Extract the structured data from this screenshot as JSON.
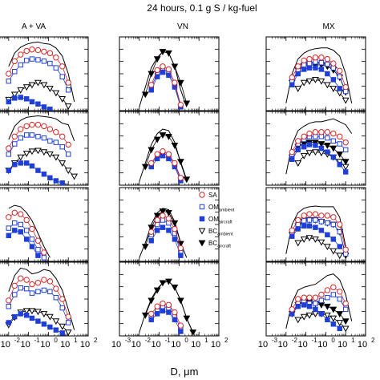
{
  "figure": {
    "title": "24 hours, 0.1 g S / kg-fuel",
    "xlabel": "D, μm"
  },
  "columns": [
    "A + VA",
    "VN",
    "MX"
  ],
  "legend": {
    "entries": [
      {
        "id": "SA",
        "label": "SA",
        "sub": "",
        "marker": "open-circle",
        "color": "#d62728"
      },
      {
        "id": "OMa",
        "label": "OM",
        "sub": "ambient",
        "marker": "open-square",
        "color": "#1f3fd6"
      },
      {
        "id": "OMc",
        "label": "OM",
        "sub": "aircraft",
        "marker": "filled-square",
        "color": "#1f3fd6"
      },
      {
        "id": "BCa",
        "label": "BC",
        "sub": "ambient",
        "marker": "open-triangle-down",
        "color": "#000000"
      },
      {
        "id": "BCc",
        "label": "BC",
        "sub": "aircraft",
        "marker": "filled-triangle-down",
        "color": "#000000"
      }
    ]
  },
  "x_ticks": [
    {
      "base": "10",
      "exp": "-3"
    },
    {
      "base": "10",
      "exp": "-2"
    },
    {
      "base": "10",
      "exp": "-1"
    },
    {
      "base": "10",
      "exp": "0"
    },
    {
      "base": "10",
      "exp": "1"
    },
    {
      "base": "10",
      "exp": "2"
    }
  ],
  "chart_data": {
    "type": "line",
    "xscale": "log",
    "xlim": [
      0.001,
      100
    ],
    "ylim": [
      0,
      1
    ],
    "y_tick_labels": "none",
    "rows": 4,
    "cols": 3,
    "series_styles": {
      "total": {
        "color": "#000000",
        "line": "solid",
        "marker": "none"
      },
      "SA": {
        "color": "#d62728",
        "marker": "open-circle"
      },
      "OMa": {
        "color": "#1f3fd6",
        "marker": "open-square"
      },
      "OMc": {
        "color": "#1f3fd6",
        "marker": "filled-square"
      },
      "BCa": {
        "color": "#000000",
        "marker": "open-triangle-down"
      },
      "BCc": {
        "color": "#000000",
        "marker": "filled-triangle-down"
      }
    },
    "panels": [
      {
        "row": 0,
        "col": 0,
        "x": [
          0.01,
          0.02,
          0.04,
          0.08,
          0.15,
          0.3,
          0.6,
          1.2,
          2.4,
          5,
          10,
          20
        ],
        "total": [
          0.6,
          0.78,
          0.86,
          0.9,
          0.92,
          0.93,
          0.91,
          0.9,
          0.85,
          0.74,
          0.5,
          0.12
        ],
        "SA": [
          0.5,
          0.67,
          0.76,
          0.81,
          0.83,
          0.82,
          0.8,
          0.78,
          0.72,
          0.6,
          0.38,
          null
        ],
        "OMa": [
          0.4,
          0.53,
          0.62,
          0.68,
          0.7,
          0.69,
          0.67,
          0.64,
          0.58,
          0.46,
          0.28,
          null
        ],
        "BCa": [
          0.15,
          0.22,
          0.28,
          0.32,
          0.35,
          0.38,
          0.35,
          0.3,
          0.24,
          0.16,
          0.06,
          null
        ],
        "OMc": [
          0.12,
          0.17,
          0.18,
          0.16,
          0.12,
          0.09,
          0.05,
          0.02,
          null,
          null,
          null,
          null
        ],
        "BCc": []
      },
      {
        "row": 0,
        "col": 1,
        "x": [
          0.01,
          0.02,
          0.04,
          0.08,
          0.15,
          0.3,
          0.6,
          1.2,
          2.4
        ],
        "total": [
          0.05,
          0.32,
          0.58,
          0.72,
          0.8,
          0.78,
          0.6,
          0.28,
          0.05
        ],
        "SA": [
          null,
          null,
          0.35,
          0.55,
          0.6,
          0.56,
          0.38,
          0.08,
          null
        ],
        "OMa": [
          null,
          null,
          0.32,
          0.5,
          0.56,
          0.52,
          0.35,
          0.06,
          null
        ],
        "BCa": [],
        "OMc": [
          null,
          null,
          0.28,
          0.46,
          0.52,
          0.48,
          0.32,
          0.05,
          null
        ],
        "BCc": [
          null,
          0.22,
          0.5,
          0.7,
          0.8,
          0.78,
          0.6,
          0.38,
          0.1
        ]
      },
      {
        "row": 0,
        "col": 2,
        "x": [
          0.01,
          0.02,
          0.04,
          0.08,
          0.15,
          0.3,
          0.6,
          1.2,
          2.4,
          5,
          10,
          20
        ],
        "total": [
          0.1,
          0.5,
          0.7,
          0.78,
          0.82,
          0.84,
          0.85,
          0.85,
          0.82,
          0.74,
          0.5,
          0.1
        ],
        "SA": [
          null,
          0.45,
          0.6,
          0.68,
          0.7,
          0.72,
          0.72,
          0.7,
          0.64,
          0.54,
          0.32,
          null
        ],
        "OMa": [
          null,
          0.4,
          0.55,
          0.62,
          0.64,
          0.66,
          0.65,
          0.63,
          0.58,
          0.46,
          0.26,
          null
        ],
        "BCa": [
          null,
          null,
          0.3,
          0.38,
          0.4,
          0.42,
          0.4,
          0.35,
          0.3,
          0.24,
          0.14,
          null
        ],
        "OMc": [
          null,
          0.35,
          0.5,
          0.56,
          0.58,
          0.58,
          0.56,
          0.5,
          0.42,
          0.3,
          null,
          null
        ],
        "BCc": [
          null,
          0.38,
          0.55,
          0.6,
          0.62,
          0.62,
          0.62,
          0.6,
          0.55,
          0.45,
          0.25,
          null
        ]
      },
      {
        "row": 1,
        "col": 0,
        "x": [
          0.01,
          0.02,
          0.04,
          0.08,
          0.15,
          0.3,
          0.6,
          1.2,
          2.4,
          5,
          10,
          20
        ],
        "total": [
          0.62,
          0.8,
          0.88,
          0.92,
          0.93,
          0.94,
          0.93,
          0.92,
          0.9,
          0.84,
          0.82,
          0.6
        ],
        "SA": [
          0.5,
          0.66,
          0.76,
          0.8,
          0.82,
          0.82,
          0.8,
          0.76,
          0.72,
          0.66,
          0.55,
          null
        ],
        "OMa": [
          0.42,
          0.56,
          0.64,
          0.68,
          0.68,
          0.66,
          0.64,
          0.6,
          0.58,
          0.52,
          0.42,
          null
        ],
        "BCa": [
          0.2,
          0.3,
          0.38,
          0.43,
          0.46,
          0.47,
          0.45,
          0.42,
          0.38,
          0.3,
          0.2,
          0.12
        ],
        "OMc": [
          0.2,
          0.28,
          0.3,
          0.3,
          0.26,
          0.2,
          0.15,
          0.1,
          0.06,
          0.03,
          null,
          null
        ],
        "BCc": []
      },
      {
        "row": 1,
        "col": 1,
        "x": [
          0.01,
          0.02,
          0.04,
          0.08,
          0.15,
          0.3,
          0.6,
          1.2,
          2.4
        ],
        "total": [
          0.05,
          0.3,
          0.55,
          0.7,
          0.76,
          0.74,
          0.58,
          0.3,
          0.06
        ],
        "SA": [
          null,
          null,
          0.3,
          0.42,
          0.46,
          0.42,
          0.3,
          0.1,
          null
        ],
        "OMa": [
          null,
          null,
          0.28,
          0.4,
          0.44,
          0.4,
          0.28,
          0.08,
          null
        ],
        "BCa": [],
        "OMc": [
          null,
          null,
          0.25,
          0.36,
          0.4,
          0.36,
          0.25,
          0.06,
          null
        ],
        "BCc": [
          null,
          0.25,
          0.48,
          0.62,
          0.68,
          0.66,
          0.54,
          0.32,
          0.08
        ]
      },
      {
        "row": 1,
        "col": 2,
        "x": [
          0.01,
          0.02,
          0.04,
          0.08,
          0.15,
          0.3,
          0.6,
          1.2,
          2.4,
          5,
          10,
          20
        ],
        "total": [
          0.15,
          0.55,
          0.74,
          0.8,
          0.84,
          0.86,
          0.86,
          0.88,
          0.9,
          0.86,
          0.82,
          0.7
        ],
        "SA": [
          null,
          0.45,
          0.6,
          0.66,
          0.7,
          0.72,
          0.72,
          0.72,
          0.7,
          0.66,
          0.58,
          null
        ],
        "OMa": [
          null,
          0.42,
          0.56,
          0.62,
          0.66,
          0.66,
          0.66,
          0.64,
          0.6,
          0.56,
          0.48,
          null
        ],
        "BCa": [
          null,
          null,
          0.3,
          0.4,
          0.44,
          0.45,
          0.44,
          0.42,
          0.38,
          0.32,
          0.25,
          null
        ],
        "OMc": [
          null,
          0.35,
          0.48,
          0.52,
          0.55,
          0.54,
          0.5,
          0.45,
          0.38,
          0.28,
          0.18,
          null
        ],
        "BCc": [
          null,
          0.38,
          0.52,
          0.56,
          0.58,
          0.58,
          0.56,
          0.54,
          0.5,
          0.42,
          0.32,
          null
        ]
      },
      {
        "row": 2,
        "col": 0,
        "x": [
          0.01,
          0.02,
          0.04,
          0.08,
          0.15,
          0.3,
          0.6,
          1.2,
          2.4,
          5,
          10,
          20
        ],
        "total": [
          0.72,
          0.76,
          0.74,
          0.66,
          0.55,
          0.38,
          0.2,
          0.05,
          null,
          null,
          null,
          null
        ],
        "SA": [
          0.6,
          0.66,
          0.64,
          0.56,
          0.44,
          0.28,
          0.12,
          null,
          null,
          null,
          null,
          null
        ],
        "OMa": [
          0.45,
          0.52,
          0.5,
          0.42,
          0.3,
          0.16,
          0.05,
          null,
          null,
          null,
          null,
          null
        ],
        "BCa": [],
        "OMc": [
          0.35,
          0.42,
          0.4,
          0.3,
          0.2,
          0.08,
          null,
          null,
          null,
          null,
          null,
          null
        ],
        "BCc": []
      },
      {
        "row": 2,
        "col": 1,
        "x": [
          0.01,
          0.02,
          0.04,
          0.08,
          0.15,
          0.3,
          0.6,
          1.2,
          2.4
        ],
        "total": [
          0.05,
          0.25,
          0.5,
          0.66,
          0.72,
          0.7,
          0.54,
          0.25,
          0.05
        ],
        "SA": [
          null,
          null,
          0.4,
          0.56,
          0.62,
          0.58,
          0.44,
          0.18,
          null
        ],
        "OMa": [
          null,
          null,
          0.36,
          0.5,
          0.56,
          0.52,
          0.38,
          0.12,
          null
        ],
        "BCa": [],
        "OMc": [
          null,
          null,
          0.28,
          0.42,
          0.46,
          0.42,
          0.3,
          0.08,
          null
        ],
        "BCc": [
          null,
          0.2,
          0.46,
          0.62,
          0.68,
          0.66,
          0.52,
          0.24,
          null
        ]
      },
      {
        "row": 2,
        "col": 2,
        "x": [
          0.01,
          0.02,
          0.04,
          0.08,
          0.15,
          0.3,
          0.6,
          1.2,
          2.4,
          5,
          10,
          20
        ],
        "total": [
          0.1,
          0.5,
          0.66,
          0.72,
          0.74,
          0.75,
          0.74,
          0.74,
          0.74,
          0.6,
          0.2,
          null
        ],
        "SA": [
          null,
          0.42,
          0.56,
          0.62,
          0.64,
          0.64,
          0.62,
          0.62,
          0.6,
          0.5,
          0.16,
          null
        ],
        "OMa": [
          null,
          0.38,
          0.5,
          0.55,
          0.56,
          0.56,
          0.54,
          0.52,
          0.5,
          0.4,
          0.1,
          null
        ],
        "BCa": [
          null,
          null,
          0.25,
          0.3,
          0.32,
          0.3,
          0.26,
          0.2,
          0.14,
          0.08,
          null,
          null
        ],
        "OMc": [
          null,
          0.34,
          0.44,
          0.48,
          0.48,
          0.46,
          0.42,
          0.36,
          0.3,
          0.2,
          null,
          null
        ],
        "BCc": [
          null,
          0.36,
          0.48,
          0.54,
          0.56,
          0.56,
          0.54,
          0.52,
          0.5,
          0.4,
          0.08,
          null
        ]
      },
      {
        "row": 3,
        "col": 0,
        "x": [
          0.01,
          0.02,
          0.04,
          0.08,
          0.15,
          0.3,
          0.6,
          1.2,
          2.4,
          5,
          10,
          20
        ],
        "total": [
          0.6,
          0.82,
          0.92,
          0.9,
          0.84,
          0.86,
          0.9,
          0.88,
          0.78,
          0.62,
          0.36,
          0.08
        ],
        "SA": [
          0.48,
          0.68,
          0.78,
          0.76,
          0.7,
          0.72,
          0.76,
          0.74,
          0.64,
          0.5,
          0.26,
          null
        ],
        "OMa": [
          0.4,
          0.56,
          0.65,
          0.64,
          0.58,
          0.6,
          0.62,
          0.6,
          0.52,
          0.38,
          0.18,
          null
        ],
        "BCa": [
          0.15,
          0.25,
          0.32,
          0.34,
          0.34,
          0.33,
          0.3,
          0.26,
          0.2,
          0.13,
          0.05,
          null
        ],
        "OMc": [
          0.18,
          0.26,
          0.3,
          0.28,
          0.24,
          0.2,
          0.16,
          0.12,
          0.08,
          0.04,
          null,
          null
        ],
        "BCc": []
      },
      {
        "row": 3,
        "col": 1,
        "x": [
          0.01,
          0.02,
          0.04,
          0.08,
          0.15,
          0.3,
          0.6,
          1.2,
          2.4,
          5
        ],
        "total": [
          0.05,
          0.3,
          0.5,
          0.64,
          0.72,
          0.74,
          0.66,
          0.48,
          0.24,
          0.04
        ],
        "SA": [
          null,
          null,
          0.3,
          0.4,
          0.44,
          0.42,
          0.32,
          0.14,
          null,
          null
        ],
        "OMa": [
          null,
          null,
          0.26,
          0.36,
          0.4,
          0.38,
          0.28,
          0.1,
          null,
          null
        ],
        "BCa": [],
        "OMc": [
          null,
          null,
          0.22,
          0.3,
          0.34,
          0.32,
          0.22,
          0.06,
          null,
          null
        ],
        "BCc": [
          null,
          0.28,
          0.48,
          0.62,
          0.72,
          0.74,
          0.66,
          0.48,
          0.24,
          0.05
        ]
      },
      {
        "row": 3,
        "col": 2,
        "x": [
          0.01,
          0.02,
          0.04,
          0.08,
          0.15,
          0.3,
          0.6,
          1.2,
          2.4,
          5,
          10,
          20
        ],
        "total": [
          0.1,
          0.45,
          0.62,
          0.66,
          0.68,
          0.7,
          0.76,
          0.82,
          0.84,
          0.76,
          0.56,
          0.2
        ],
        "SA": [
          null,
          0.36,
          0.5,
          0.52,
          0.52,
          0.52,
          0.56,
          0.62,
          0.66,
          0.6,
          0.44,
          null
        ],
        "OMa": [
          null,
          0.32,
          0.44,
          0.46,
          0.44,
          0.44,
          0.48,
          0.52,
          0.56,
          0.5,
          0.36,
          null
        ],
        "BCa": [
          null,
          null,
          0.22,
          0.26,
          0.28,
          0.3,
          0.3,
          0.28,
          0.24,
          0.18,
          0.1,
          null
        ],
        "OMc": [
          null,
          0.3,
          0.4,
          0.42,
          0.4,
          0.36,
          0.3,
          0.22,
          0.16,
          0.1,
          null,
          null
        ],
        "BCc": [
          null,
          0.3,
          0.42,
          0.46,
          0.46,
          0.44,
          0.42,
          0.4,
          0.36,
          0.3,
          0.2,
          null
        ]
      }
    ]
  }
}
